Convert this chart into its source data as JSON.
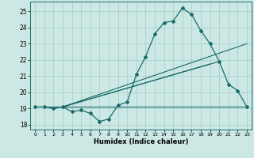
{
  "xlabel": "Humidex (Indice chaleur)",
  "xlim": [
    -0.5,
    23.5
  ],
  "ylim": [
    17.7,
    25.6
  ],
  "yticks": [
    18,
    19,
    20,
    21,
    22,
    23,
    24,
    25
  ],
  "xticks": [
    0,
    1,
    2,
    3,
    4,
    5,
    6,
    7,
    8,
    9,
    10,
    11,
    12,
    13,
    14,
    15,
    16,
    17,
    18,
    19,
    20,
    21,
    22,
    23
  ],
  "line_color": "#1a6b6b",
  "bg_color": "#cce8e4",
  "grid_color": "#aacfcb",
  "line1_x": [
    0,
    1,
    2,
    3,
    4,
    5,
    6,
    7,
    8,
    9,
    10,
    11,
    12,
    13,
    14,
    15,
    16,
    17,
    18,
    19,
    20,
    21,
    22,
    23
  ],
  "line1_y": [
    19.1,
    19.1,
    19.0,
    19.1,
    18.8,
    18.9,
    18.7,
    18.2,
    18.35,
    19.2,
    19.4,
    21.1,
    22.2,
    23.6,
    24.3,
    24.4,
    25.2,
    24.8,
    23.8,
    23.0,
    21.9,
    20.5,
    20.1,
    19.1
  ],
  "straight_lines": [
    {
      "x": [
        3,
        23
      ],
      "y": [
        19.1,
        23.0
      ]
    },
    {
      "x": [
        3,
        20
      ],
      "y": [
        19.1,
        21.9
      ]
    },
    {
      "x": [
        3,
        19
      ],
      "y": [
        19.1,
        21.75
      ]
    },
    {
      "x": [
        0,
        23
      ],
      "y": [
        19.1,
        19.1
      ]
    }
  ],
  "figsize": [
    3.2,
    2.0
  ],
  "dpi": 100
}
